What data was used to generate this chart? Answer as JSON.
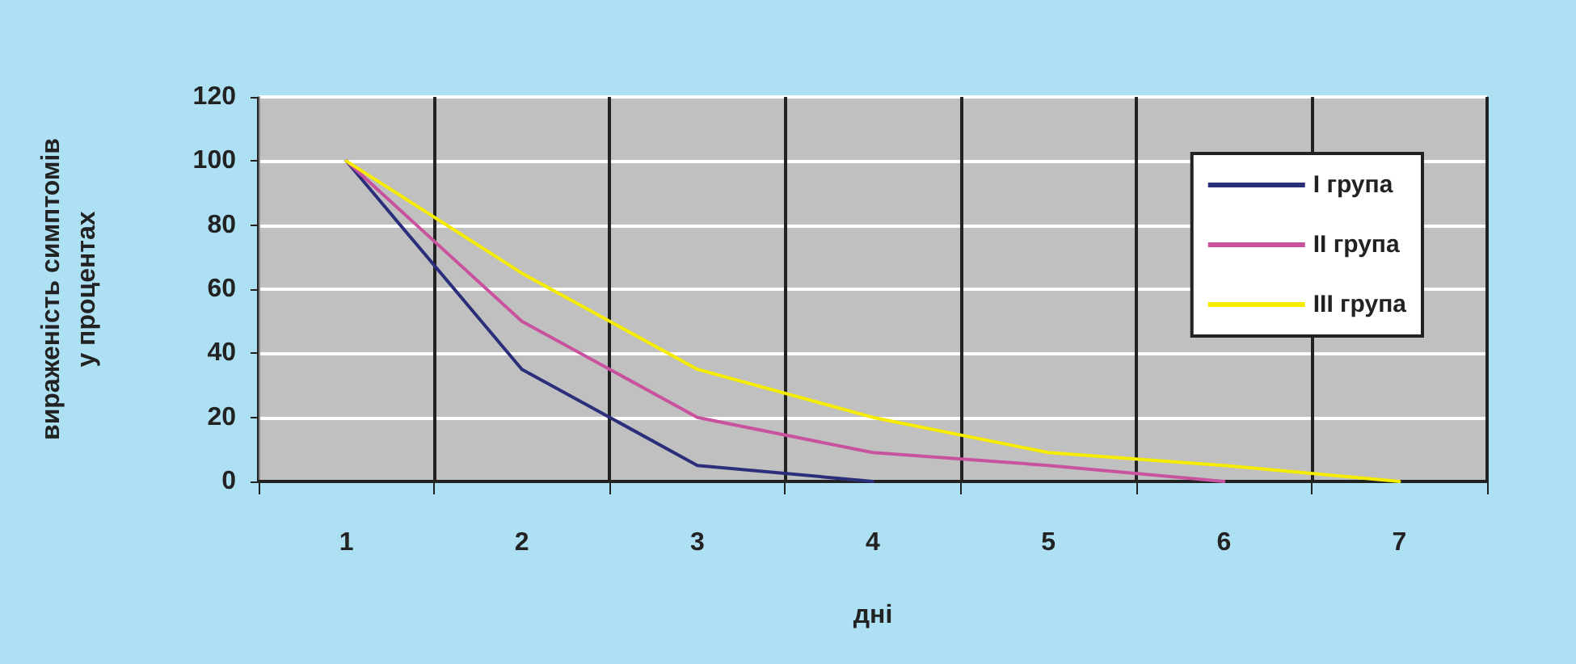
{
  "chart_data": {
    "type": "line",
    "xlabel": "дні",
    "ylabel": "вираженість симптомів\nу процентах",
    "categories": [
      "1",
      "2",
      "3",
      "4",
      "5",
      "6",
      "7"
    ],
    "series": [
      {
        "name": "I група",
        "color": "#2b2e7a",
        "values": [
          100,
          35,
          5,
          0,
          null,
          null,
          null
        ]
      },
      {
        "name": "II група",
        "color": "#c9529e",
        "values": [
          100,
          50,
          20,
          9,
          5,
          0,
          null
        ]
      },
      {
        "name": "III група",
        "color": "#f5ec00",
        "values": [
          100,
          65,
          35,
          20,
          9,
          5,
          0
        ]
      }
    ],
    "ylim": [
      0,
      120
    ],
    "yticks": [
      0,
      20,
      40,
      60,
      80,
      100,
      120
    ],
    "grid": true,
    "legend": "right",
    "marker": "none",
    "line_style": "solid"
  }
}
